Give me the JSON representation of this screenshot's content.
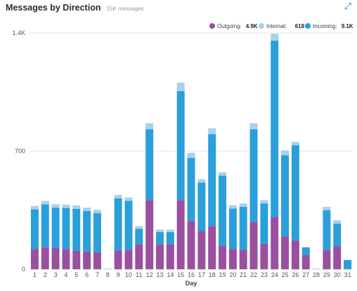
{
  "header": {
    "title": "Messages by Direction",
    "subtitle": "15K messages",
    "expand_icon": "expand-icon"
  },
  "colors": {
    "outgoing": "#9b4f9f",
    "internal": "#a9d1ee",
    "incoming": "#2a9fda",
    "grid": "#e6e6e6"
  },
  "legend": [
    {
      "label": "Outgoing:",
      "value": "4.9K",
      "color": "#9b4f9f"
    },
    {
      "label": "Internal:",
      "value": "618",
      "color": "#a9d1ee"
    },
    {
      "label": "Incoming:",
      "value": "9.1K",
      "color": "#2a9fda"
    }
  ],
  "chart_data": {
    "type": "bar",
    "stacked": true,
    "title": "Messages by Direction",
    "xlabel": "Day",
    "ylabel": "",
    "ylim": [
      0,
      1400
    ],
    "yticks": [
      0,
      700,
      1400
    ],
    "ytick_labels": [
      "0",
      "700",
      "1.4K"
    ],
    "grid": true,
    "legend_position": "top-right",
    "categories": [
      "1",
      "2",
      "3",
      "4",
      "5",
      "6",
      "7",
      "8",
      "9",
      "10",
      "11",
      "12",
      "13",
      "14",
      "15",
      "16",
      "17",
      "18",
      "19",
      "20",
      "21",
      "22",
      "23",
      "24",
      "25",
      "26",
      "27",
      "28",
      "29",
      "30",
      "31"
    ],
    "series": [
      {
        "name": "Outgoing",
        "color": "#9b4f9f",
        "values": [
          120,
          130,
          125,
          120,
          108,
          105,
          100,
          0,
          110,
          115,
          148,
          410,
          148,
          148,
          410,
          285,
          228,
          255,
          140,
          120,
          115,
          280,
          150,
          310,
          195,
          170,
          85,
          0,
          115,
          135,
          0
        ]
      },
      {
        "name": "Incoming",
        "color": "#2a9fda",
        "values": [
          235,
          255,
          240,
          243,
          250,
          240,
          232,
          0,
          310,
          290,
          92,
          420,
          72,
          72,
          645,
          375,
          285,
          545,
          415,
          240,
          255,
          550,
          240,
          1045,
          480,
          565,
          45,
          0,
          235,
          135,
          55
        ]
      },
      {
        "name": "Internal",
        "color": "#a9d1ee",
        "values": [
          20,
          20,
          20,
          20,
          20,
          20,
          20,
          4,
          20,
          20,
          15,
          35,
          15,
          15,
          50,
          30,
          20,
          35,
          20,
          20,
          20,
          35,
          20,
          40,
          30,
          20,
          0,
          4,
          20,
          20,
          0
        ]
      }
    ]
  }
}
